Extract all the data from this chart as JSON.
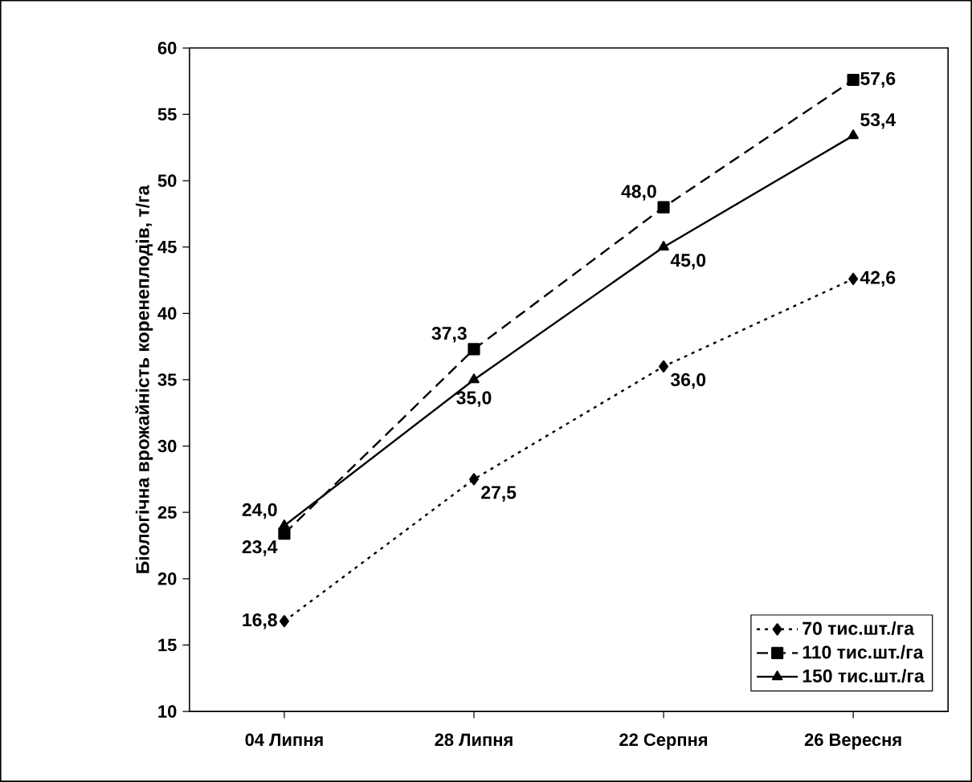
{
  "chart_data": {
    "type": "line",
    "ylabel": "Біологічна врожайність коренеплодів, т/га",
    "categories": [
      "04 Липня",
      "28 Липня",
      "22 Серпня",
      "26 Вересня"
    ],
    "ylim": [
      10,
      60
    ],
    "yticks": [
      10,
      15,
      20,
      25,
      30,
      35,
      40,
      45,
      50,
      55,
      60
    ],
    "grid": false,
    "legend": "bottom right",
    "series": [
      {
        "name": "70 тис.шт./га",
        "color": "#000000",
        "marker": "diamond",
        "line_style": "dotted",
        "values": [
          16.8,
          27.5,
          36.0,
          42.6
        ],
        "value_labels": [
          "16,8",
          "27,5",
          "36,0",
          "42,6"
        ]
      },
      {
        "name": "110 тис.шт./га",
        "color": "#000000",
        "marker": "square",
        "line_style": "dashed",
        "values": [
          23.4,
          37.3,
          48.0,
          57.6
        ],
        "value_labels": [
          "23,4",
          "37,3",
          "48,0",
          "57,6"
        ]
      },
      {
        "name": "150 тис.шт./га",
        "color": "#000000",
        "marker": "triangle",
        "line_style": "solid",
        "values": [
          24.0,
          35.0,
          45.0,
          53.4
        ],
        "value_labels": [
          "24,0",
          "35,0",
          "45,0",
          "53,4"
        ]
      }
    ]
  }
}
